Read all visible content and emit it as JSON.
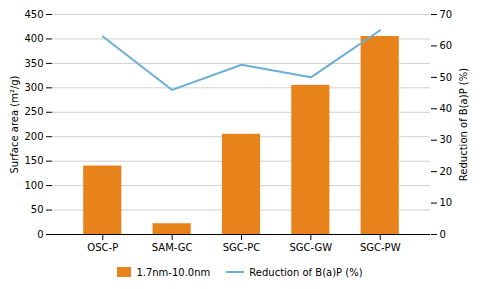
{
  "chart_data": {
    "type": "bar",
    "categories": [
      "OSC-P",
      "SAM-GC",
      "SGC-PC",
      "SGC-GW",
      "SGC-PW"
    ],
    "series": [
      {
        "name": "1.7nm-10.0nm",
        "type": "bar",
        "color": "#E8821A",
        "values": [
          140,
          22,
          205,
          305,
          405
        ]
      },
      {
        "name": "Reduction of B(a)P (%)",
        "type": "line",
        "color": "#6BAED6",
        "axis": "y2",
        "values": [
          63,
          46,
          54,
          50,
          65
        ]
      }
    ],
    "ylabel": "Surface area (m²/g)",
    "y2label": "Reduction of B(a)P (%)",
    "ylim": [
      0,
      450
    ],
    "yticks": [
      0,
      50,
      100,
      150,
      200,
      250,
      300,
      350,
      400,
      450
    ],
    "y2lim": [
      0,
      70
    ],
    "y2ticks": [
      0,
      10,
      20,
      30,
      40,
      50,
      60,
      70
    ],
    "grid": true,
    "legend": "bottom"
  }
}
